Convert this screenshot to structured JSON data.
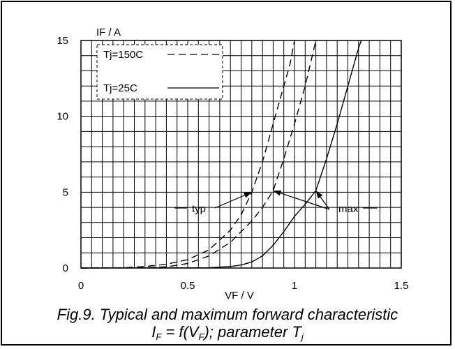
{
  "chart_data": {
    "type": "line",
    "ylabel": "IF / A",
    "xlabel": "VF / V",
    "xlim": [
      0,
      1.5
    ],
    "ylim": [
      0,
      15
    ],
    "x_ticks": [
      "0",
      "0.5",
      "1",
      "1.5"
    ],
    "y_ticks": [
      "0",
      "5",
      "10",
      "15"
    ],
    "grid": true,
    "legend": [
      {
        "label": "Tj=150C",
        "style": "dashed"
      },
      {
        "label": "Tj=25C",
        "style": "solid"
      }
    ],
    "legend_position": "top-left",
    "series": [
      {
        "style": "dashed",
        "x": [
          0,
          0.2,
          0.3,
          0.4,
          0.5,
          0.6,
          0.7,
          0.75,
          0.8,
          0.85,
          0.9,
          0.95,
          0.98,
          1.0,
          1.05
        ],
        "y": [
          0,
          0.02,
          0.1,
          0.25,
          0.55,
          1.2,
          2.5,
          3.5,
          5.0,
          7.0,
          9.5,
          12.0,
          13.5,
          15.0,
          17.0
        ]
      },
      {
        "style": "dashed",
        "x": [
          0,
          0.3,
          0.4,
          0.5,
          0.6,
          0.7,
          0.8,
          0.85,
          0.9,
          0.95,
          1.0,
          1.05,
          1.1,
          1.15
        ],
        "y": [
          0,
          0.02,
          0.08,
          0.3,
          0.8,
          1.7,
          3.1,
          4.0,
          5.1,
          7.2,
          9.5,
          12.0,
          15.0,
          17.5
        ]
      },
      {
        "style": "solid",
        "x": [
          0,
          0.6,
          0.7,
          0.75,
          0.8,
          0.85,
          0.9,
          0.95,
          1.0,
          1.05,
          1.1,
          1.15,
          1.2,
          1.25,
          1.3,
          1.35,
          1.4
        ],
        "y": [
          0,
          0.02,
          0.1,
          0.2,
          0.4,
          0.8,
          1.5,
          2.4,
          3.4,
          4.2,
          5.1,
          7.2,
          9.5,
          12.0,
          14.5,
          16.5,
          18.5
        ]
      }
    ],
    "annotations": [
      {
        "text": "typ",
        "targets": [
          {
            "x": 0.8,
            "y": 5.0
          }
        ]
      },
      {
        "text": "max",
        "targets": [
          {
            "x": 0.9,
            "y": 5.1
          },
          {
            "x": 1.1,
            "y": 5.1
          }
        ]
      }
    ]
  },
  "caption": {
    "line1": "Fig.9.  Typical and maximum forward characteristic",
    "line2_I": "I",
    "line2_F1": "F",
    "line2_mid": " = f(V",
    "line2_F2": "F",
    "line2_rest": "); parameter T",
    "line2_j": "j"
  },
  "colors": {
    "line": "#000000",
    "grid": "#000000",
    "background": "#ffffff"
  }
}
